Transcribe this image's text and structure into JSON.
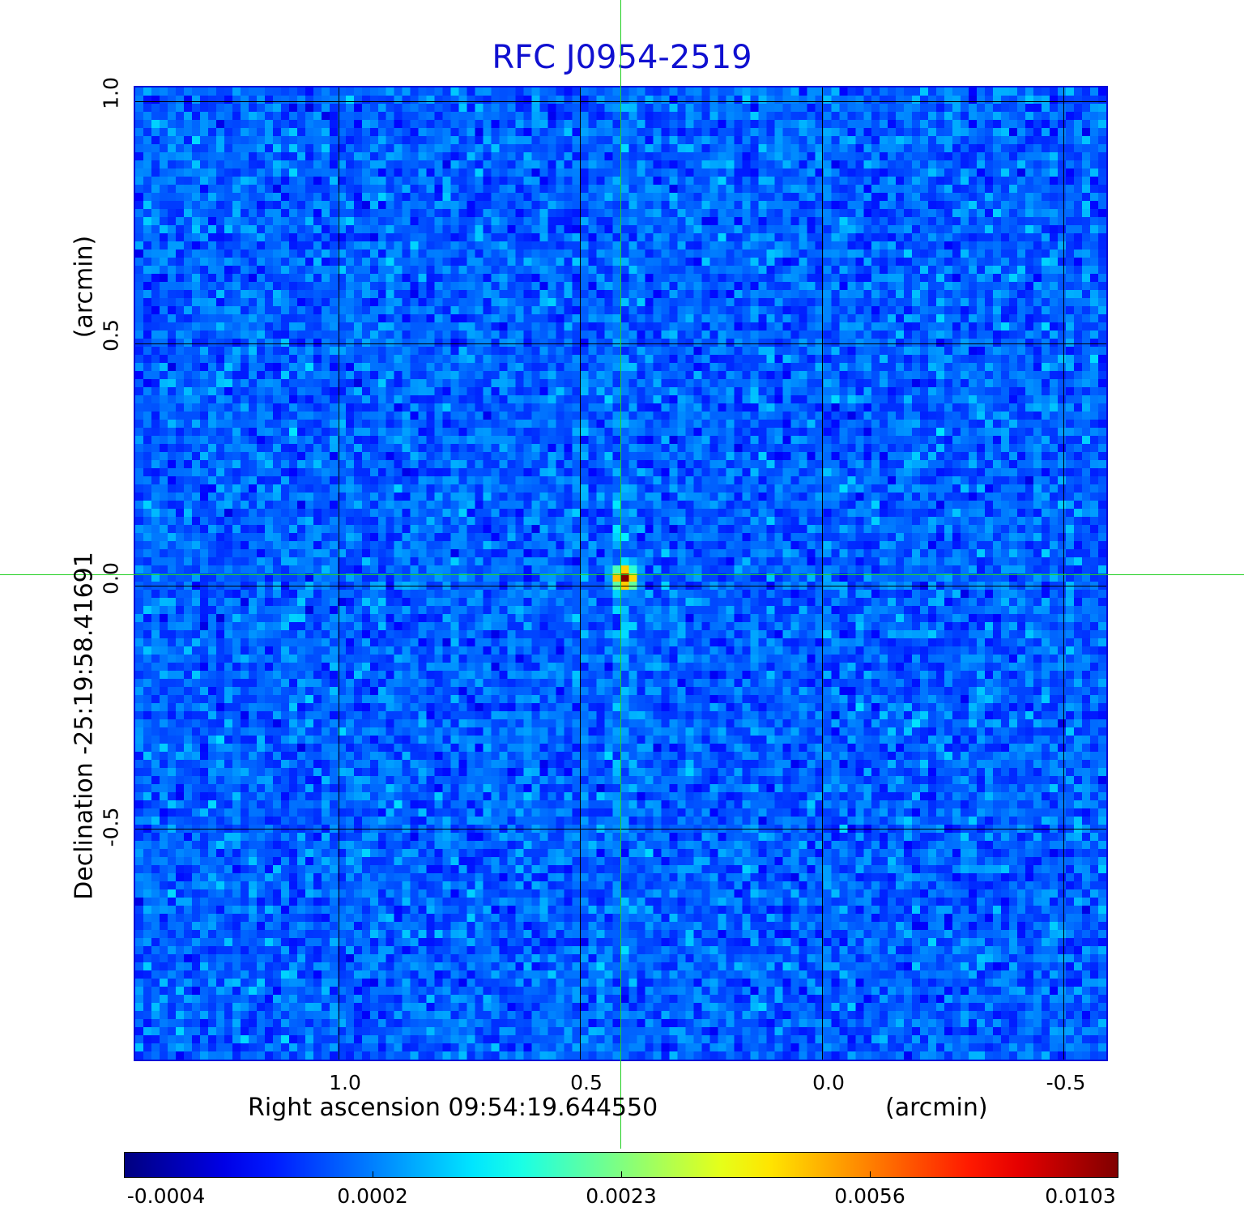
{
  "title": "RFC J0954-2519",
  "colors": {
    "title": "#1010d0",
    "background_field": "#2f7df2",
    "crosshair": "#22d022",
    "grid": "#000000"
  },
  "axes": {
    "x": {
      "label": "Right ascension  09:54:19.644550",
      "unit": "(arcmin)",
      "ticks": [
        "1.0",
        "0.5",
        "0.0",
        "-0.5"
      ]
    },
    "y": {
      "label": "Declination  -25:19:58.41691",
      "unit": "(arcmin)",
      "ticks": [
        "1.0",
        "0.5",
        "0.0",
        "-0.5"
      ]
    }
  },
  "colorbar": {
    "colormap": "jet",
    "ticks": [
      "-0.0004",
      "0.0002",
      "0.0023",
      "0.0056",
      "0.0103"
    ]
  }
}
